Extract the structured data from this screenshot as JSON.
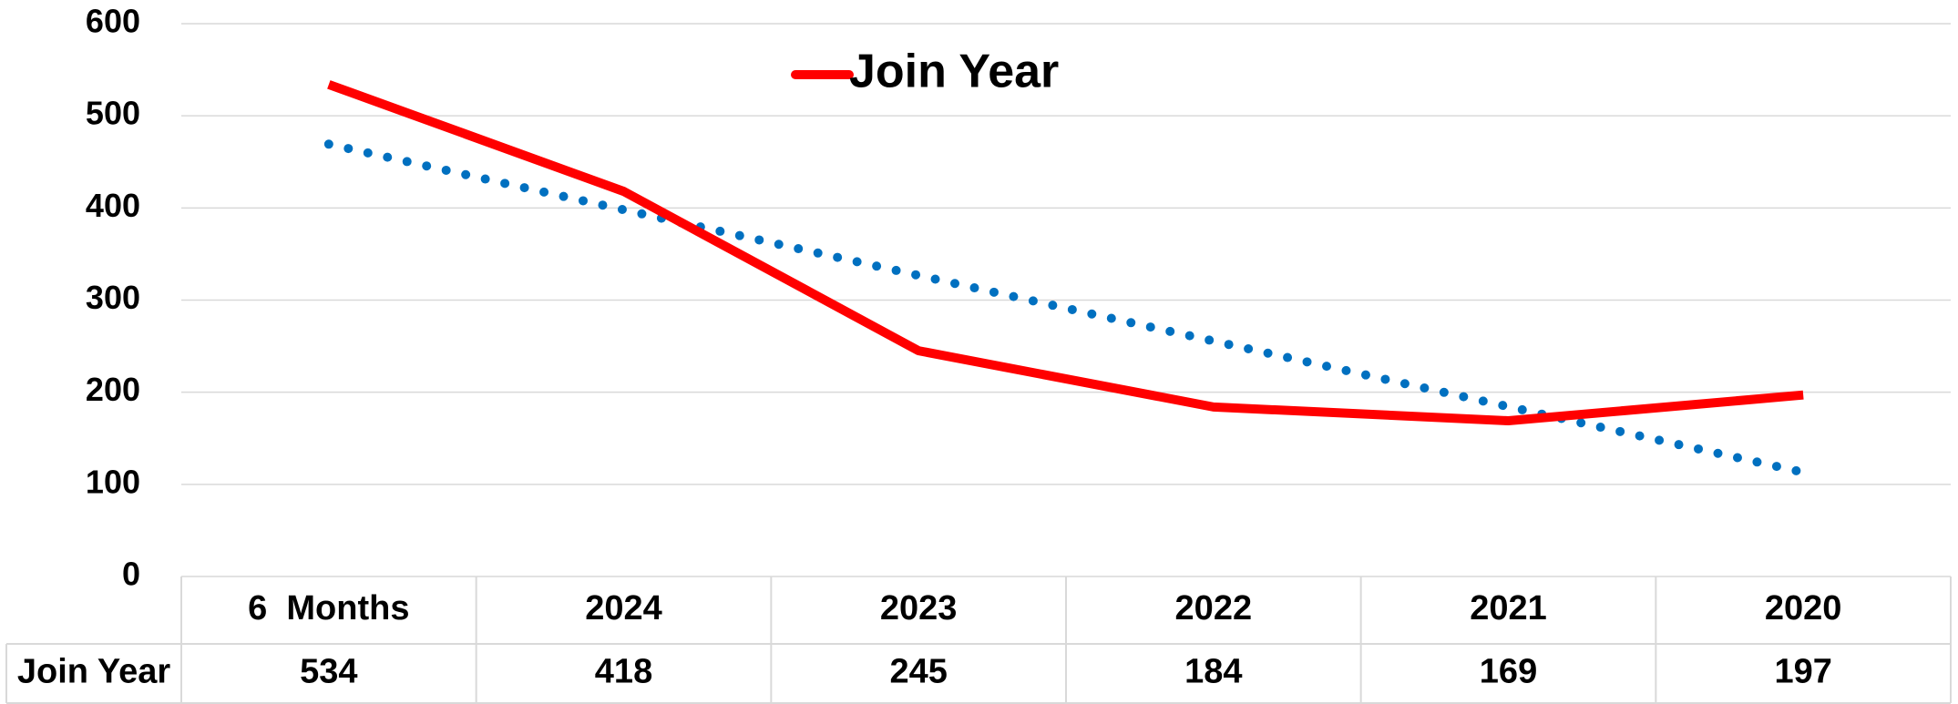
{
  "chart_data": {
    "type": "line",
    "categories": [
      "6  Months",
      "2024",
      "2023",
      "2022",
      "2021",
      "2020"
    ],
    "series": [
      {
        "name": "Join Year",
        "color": "#ff0000",
        "values": [
          534,
          418,
          245,
          184,
          169,
          197
        ]
      }
    ],
    "ylim": [
      0,
      600
    ],
    "yticks": [
      0,
      100,
      200,
      300,
      400,
      500,
      600
    ],
    "grid": true,
    "trendline": "linear",
    "trendline_color": "#0070c0",
    "legend": "top"
  }
}
